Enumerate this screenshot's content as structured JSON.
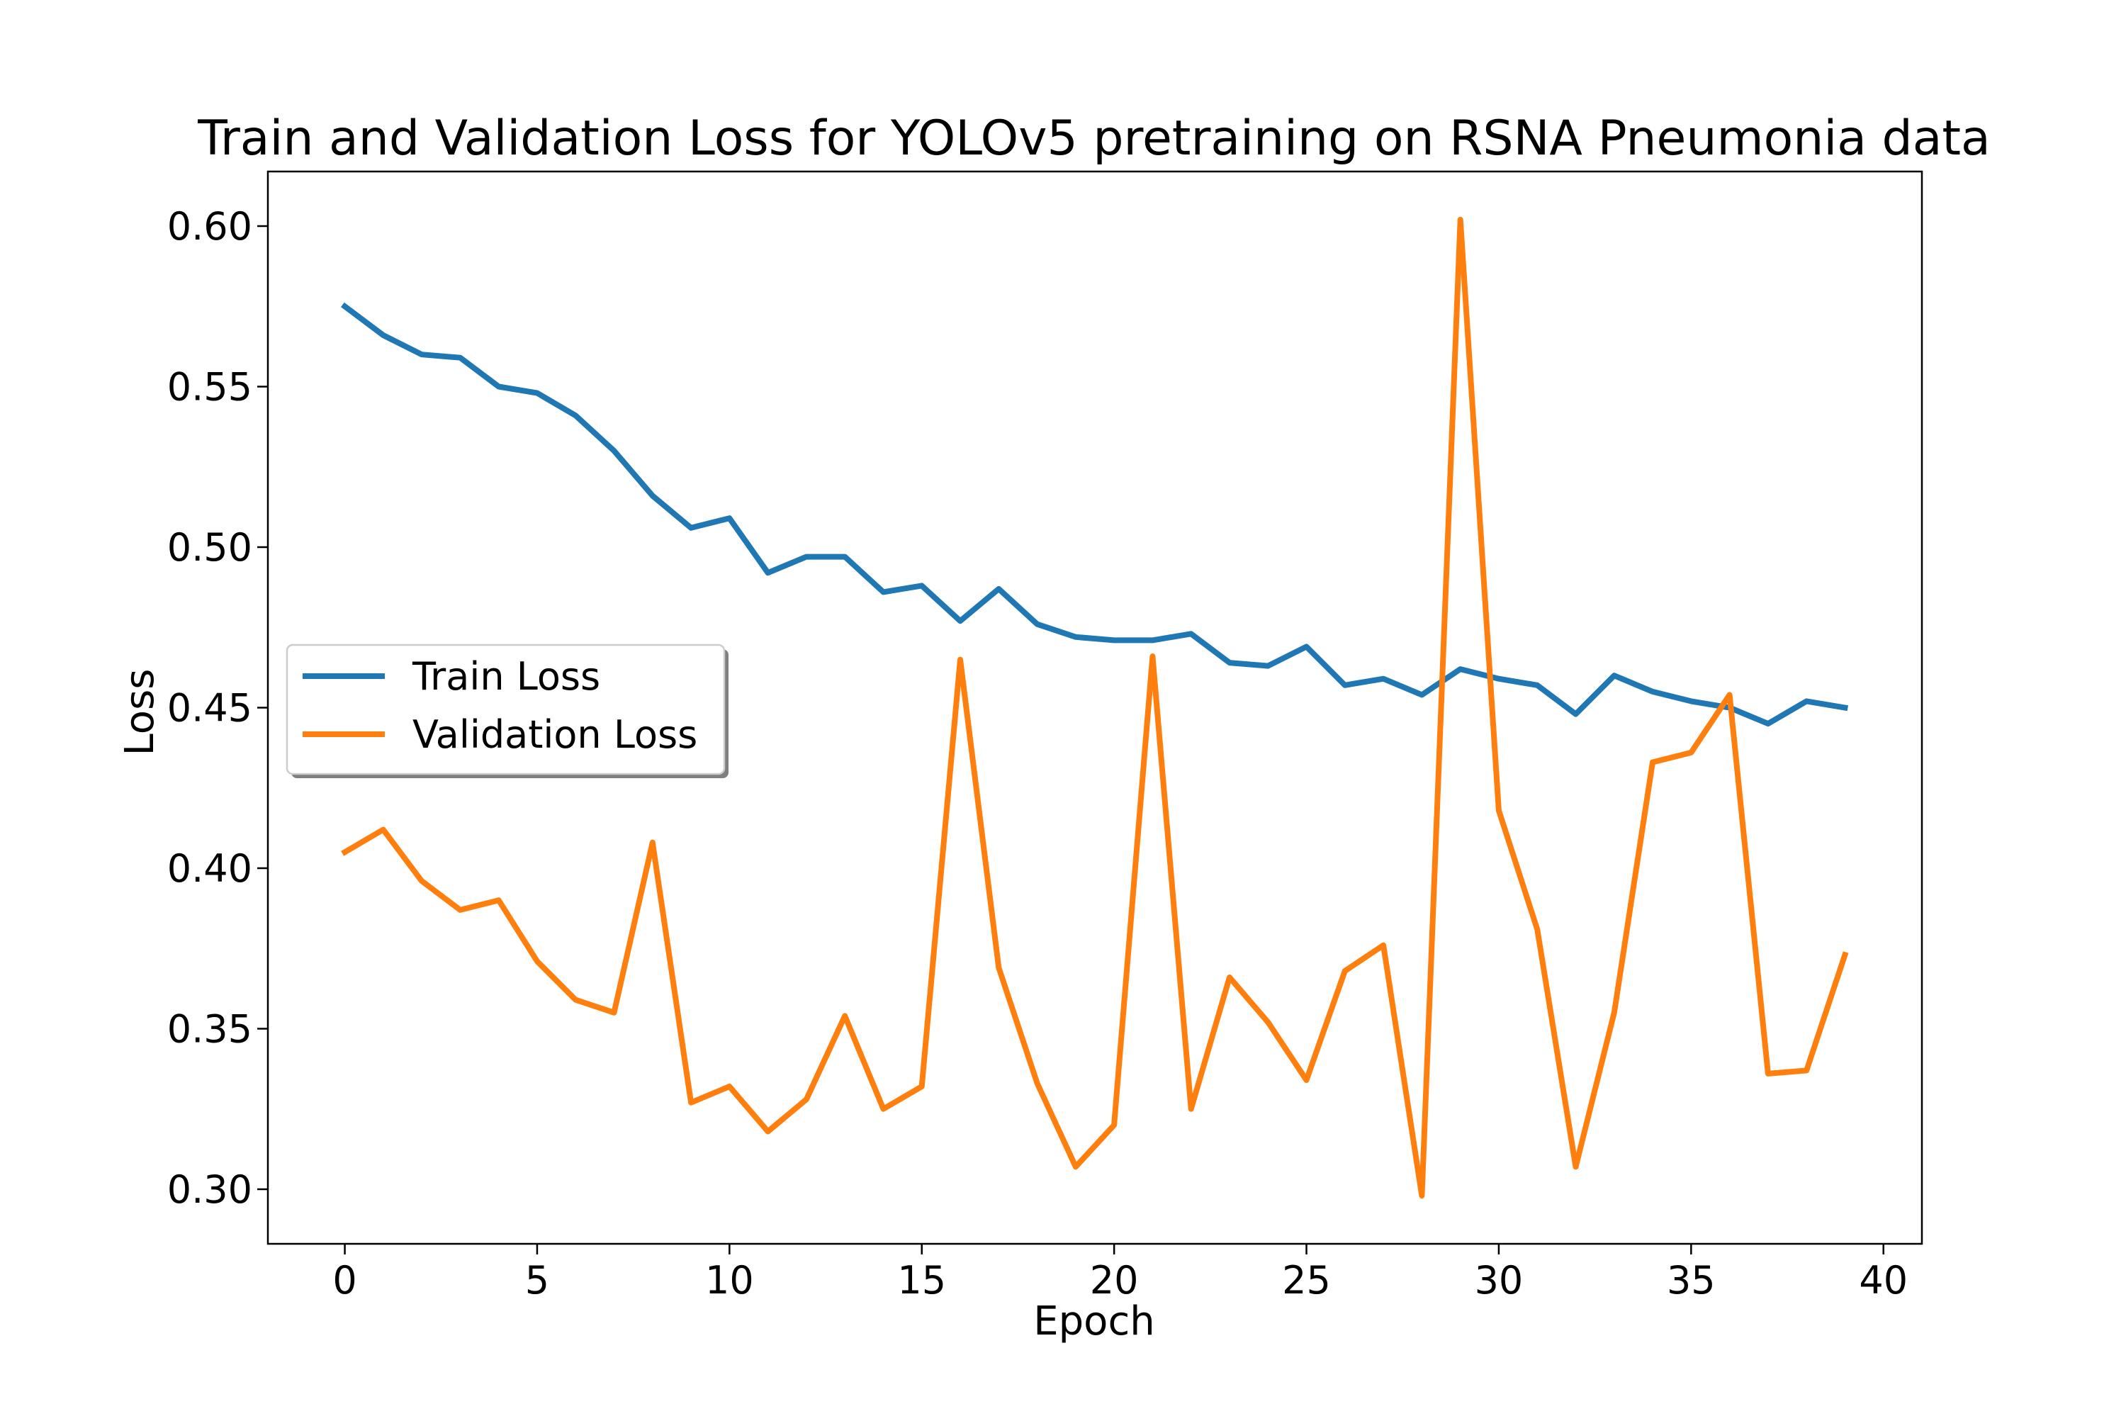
{
  "colors": {
    "train": "#1f77b4",
    "validation": "#ff7f0e",
    "axis": "#000000",
    "legend_border": "#cccccc",
    "legend_shadow": "#7f7f7f"
  },
  "chart_data": {
    "type": "line",
    "title": "Train and Validation Loss for YOLOv5 pretraining on RSNA Pneumonia data",
    "xlabel": "Epoch",
    "ylabel": "Loss",
    "xlim": [
      -2,
      41
    ],
    "ylim": [
      0.283,
      0.617
    ],
    "grid": false,
    "legend_position": "center-left",
    "xticks": [
      0,
      5,
      10,
      15,
      20,
      25,
      30,
      35,
      40
    ],
    "xtick_labels": [
      "0",
      "5",
      "10",
      "15",
      "20",
      "25",
      "30",
      "35",
      "40"
    ],
    "yticks": [
      0.3,
      0.35,
      0.4,
      0.45,
      0.5,
      0.55,
      0.6
    ],
    "ytick_labels": [
      "0.30",
      "0.35",
      "0.40",
      "0.45",
      "0.50",
      "0.55",
      "0.60"
    ],
    "x": [
      0,
      1,
      2,
      3,
      4,
      5,
      6,
      7,
      8,
      9,
      10,
      11,
      12,
      13,
      14,
      15,
      16,
      17,
      18,
      19,
      20,
      21,
      22,
      23,
      24,
      25,
      26,
      27,
      28,
      29,
      30,
      31,
      32,
      33,
      34,
      35,
      36,
      37,
      38,
      39
    ],
    "series": [
      {
        "name": "Train Loss",
        "color": "#1f77b4",
        "values": [
          0.575,
          0.566,
          0.56,
          0.559,
          0.55,
          0.548,
          0.541,
          0.53,
          0.516,
          0.506,
          0.509,
          0.492,
          0.497,
          0.497,
          0.486,
          0.488,
          0.477,
          0.487,
          0.476,
          0.472,
          0.471,
          0.471,
          0.473,
          0.464,
          0.463,
          0.469,
          0.457,
          0.459,
          0.454,
          0.462,
          0.459,
          0.457,
          0.448,
          0.46,
          0.455,
          0.452,
          0.45,
          0.445,
          0.452,
          0.45
        ]
      },
      {
        "name": "Validation Loss",
        "color": "#ff7f0e",
        "values": [
          0.405,
          0.412,
          0.396,
          0.387,
          0.39,
          0.371,
          0.359,
          0.355,
          0.408,
          0.327,
          0.332,
          0.318,
          0.328,
          0.354,
          0.325,
          0.332,
          0.465,
          0.369,
          0.333,
          0.307,
          0.32,
          0.466,
          0.325,
          0.366,
          0.352,
          0.334,
          0.368,
          0.376,
          0.298,
          0.602,
          0.418,
          0.381,
          0.307,
          0.355,
          0.433,
          0.436,
          0.454,
          0.336,
          0.337,
          0.373
        ]
      }
    ]
  }
}
